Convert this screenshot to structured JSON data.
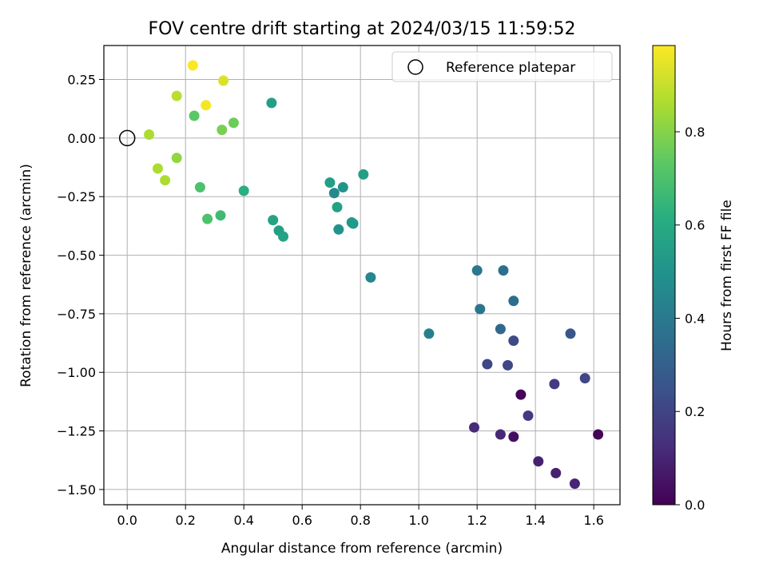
{
  "chart_data": {
    "type": "scatter",
    "title": "FOV centre drift starting at 2024/03/15 11:59:52",
    "xlabel": "Angular distance from reference (arcmin)",
    "ylabel": "Rotation from reference (arcmin)",
    "xlim": [
      -0.08,
      1.69
    ],
    "ylim": [
      -1.565,
      0.395
    ],
    "xticks": [
      0.0,
      0.2,
      0.4,
      0.6,
      0.8,
      1.0,
      1.2,
      1.4,
      1.6
    ],
    "xtick_labels": [
      "0.0",
      "0.2",
      "0.4",
      "0.6",
      "0.8",
      "1.0",
      "1.2",
      "1.4",
      "1.6"
    ],
    "yticks": [
      0.25,
      0.0,
      -0.25,
      -0.5,
      -0.75,
      -1.0,
      -1.25,
      -1.5
    ],
    "ytick_labels": [
      "0.25",
      "0.00",
      "−0.25",
      "−0.50",
      "−0.75",
      "−1.00",
      "−1.25",
      "−1.50"
    ],
    "grid": true,
    "legend": {
      "position": "top-right",
      "entries": [
        "Reference platepar"
      ]
    },
    "reference_point": {
      "x": 0.0,
      "y": 0.0
    },
    "colorbar": {
      "label": "Hours from first FF file",
      "colormap": "viridis",
      "range": [
        0.0,
        0.985
      ],
      "ticks": [
        0.0,
        0.2,
        0.4,
        0.6,
        0.8
      ],
      "tick_labels": [
        "0.0",
        "0.2",
        "0.4",
        "0.6",
        "0.8"
      ]
    },
    "points": [
      {
        "x": 0.225,
        "y": 0.31,
        "c": 0.98
      },
      {
        "x": 0.33,
        "y": 0.245,
        "c": 0.93
      },
      {
        "x": 0.27,
        "y": 0.14,
        "c": 0.97
      },
      {
        "x": 0.17,
        "y": 0.18,
        "c": 0.88
      },
      {
        "x": 0.23,
        "y": 0.095,
        "c": 0.73
      },
      {
        "x": 0.325,
        "y": 0.035,
        "c": 0.78
      },
      {
        "x": 0.365,
        "y": 0.065,
        "c": 0.76
      },
      {
        "x": 0.495,
        "y": 0.15,
        "c": 0.55
      },
      {
        "x": 0.075,
        "y": 0.015,
        "c": 0.86
      },
      {
        "x": 0.17,
        "y": -0.085,
        "c": 0.82
      },
      {
        "x": 0.105,
        "y": -0.13,
        "c": 0.86
      },
      {
        "x": 0.13,
        "y": -0.18,
        "c": 0.86
      },
      {
        "x": 0.25,
        "y": -0.21,
        "c": 0.7
      },
      {
        "x": 0.4,
        "y": -0.225,
        "c": 0.62
      },
      {
        "x": 0.275,
        "y": -0.345,
        "c": 0.7
      },
      {
        "x": 0.32,
        "y": -0.33,
        "c": 0.67
      },
      {
        "x": 0.5,
        "y": -0.35,
        "c": 0.57
      },
      {
        "x": 0.52,
        "y": -0.395,
        "c": 0.55
      },
      {
        "x": 0.535,
        "y": -0.42,
        "c": 0.57
      },
      {
        "x": 0.695,
        "y": -0.19,
        "c": 0.55
      },
      {
        "x": 0.74,
        "y": -0.21,
        "c": 0.51
      },
      {
        "x": 0.71,
        "y": -0.235,
        "c": 0.46
      },
      {
        "x": 0.81,
        "y": -0.155,
        "c": 0.55
      },
      {
        "x": 0.72,
        "y": -0.295,
        "c": 0.56
      },
      {
        "x": 0.725,
        "y": -0.39,
        "c": 0.5
      },
      {
        "x": 0.77,
        "y": -0.36,
        "c": 0.53
      },
      {
        "x": 0.775,
        "y": -0.365,
        "c": 0.53
      },
      {
        "x": 0.835,
        "y": -0.595,
        "c": 0.45
      },
      {
        "x": 1.035,
        "y": -0.835,
        "c": 0.42
      },
      {
        "x": 1.2,
        "y": -0.565,
        "c": 0.39
      },
      {
        "x": 1.29,
        "y": -0.565,
        "c": 0.36
      },
      {
        "x": 1.21,
        "y": -0.73,
        "c": 0.38
      },
      {
        "x": 1.325,
        "y": -0.695,
        "c": 0.35
      },
      {
        "x": 1.28,
        "y": -0.815,
        "c": 0.33
      },
      {
        "x": 1.325,
        "y": -0.865,
        "c": 0.22
      },
      {
        "x": 1.52,
        "y": -0.835,
        "c": 0.26
      },
      {
        "x": 1.235,
        "y": -0.965,
        "c": 0.21
      },
      {
        "x": 1.305,
        "y": -0.97,
        "c": 0.21
      },
      {
        "x": 1.57,
        "y": -1.025,
        "c": 0.21
      },
      {
        "x": 1.465,
        "y": -1.05,
        "c": 0.17
      },
      {
        "x": 1.35,
        "y": -1.095,
        "c": 0.01
      },
      {
        "x": 1.375,
        "y": -1.185,
        "c": 0.17
      },
      {
        "x": 1.19,
        "y": -1.235,
        "c": 0.12
      },
      {
        "x": 1.28,
        "y": -1.265,
        "c": 0.11
      },
      {
        "x": 1.325,
        "y": -1.275,
        "c": 0.04
      },
      {
        "x": 1.615,
        "y": -1.265,
        "c": 0.01
      },
      {
        "x": 1.41,
        "y": -1.38,
        "c": 0.09
      },
      {
        "x": 1.47,
        "y": -1.43,
        "c": 0.09
      },
      {
        "x": 1.535,
        "y": -1.475,
        "c": 0.1
      }
    ]
  }
}
